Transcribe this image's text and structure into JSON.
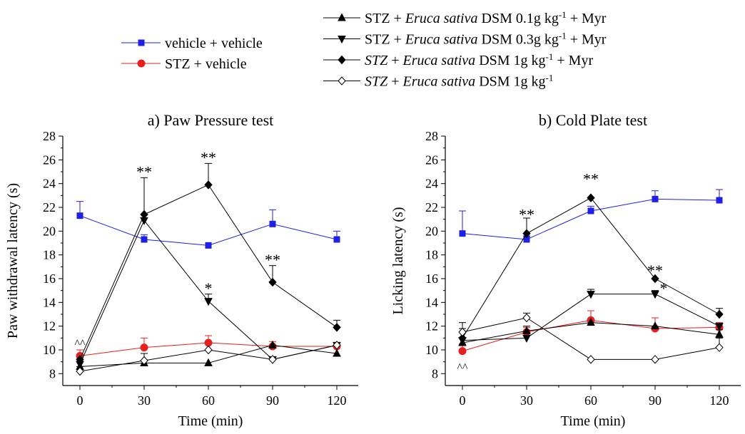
{
  "legend": {
    "left": [
      {
        "label": "vehicle + vehicle",
        "series": "vehicle_vehicle"
      },
      {
        "label": "STZ + vehicle",
        "series": "stz_vehicle"
      }
    ],
    "right": [
      {
        "series": "dsm01_myr",
        "parts": [
          [
            "STZ + ",
            "n"
          ],
          [
            "Eruca sativa",
            "i"
          ],
          [
            " DSM 0.1g kg",
            "n"
          ],
          [
            "-1",
            "sup"
          ],
          [
            " + Myr",
            "n"
          ]
        ]
      },
      {
        "series": "dsm03_myr",
        "parts": [
          [
            "STZ + ",
            "n"
          ],
          [
            "Eruca sativa",
            "i"
          ],
          [
            " DSM 0.3g kg",
            "n"
          ],
          [
            "-1",
            "sup"
          ],
          [
            " + Myr",
            "n"
          ]
        ]
      },
      {
        "series": "dsm1_myr",
        "parts": [
          [
            "STZ",
            "i"
          ],
          [
            " + ",
            "n"
          ],
          [
            "Eruca sativa",
            "i"
          ],
          [
            " DSM 1g kg",
            "n"
          ],
          [
            "-1",
            "sup"
          ],
          [
            " + Myr",
            "n"
          ]
        ]
      },
      {
        "series": "dsm1",
        "parts": [
          [
            "STZ",
            "i"
          ],
          [
            " + ",
            "n"
          ],
          [
            "Eruca sativa",
            "i"
          ],
          [
            " DSM 1g kg",
            "n"
          ],
          [
            "-1",
            "sup"
          ]
        ]
      }
    ]
  },
  "series_style": {
    "vehicle_vehicle": {
      "color": "#1f1fe6",
      "marker": "square",
      "fill": "#1f1fe6"
    },
    "stz_vehicle": {
      "color": "#e61f1f",
      "marker": "circle",
      "fill": "#e61f1f"
    },
    "dsm01_myr": {
      "color": "#000000",
      "marker": "triangle-up",
      "fill": "#000000"
    },
    "dsm03_myr": {
      "color": "#000000",
      "marker": "triangle-down",
      "fill": "#000000"
    },
    "dsm1_myr": {
      "color": "#000000",
      "marker": "diamond",
      "fill": "#000000"
    },
    "dsm1": {
      "color": "#000000",
      "marker": "diamond",
      "fill": "#ffffff"
    }
  },
  "chart_data": [
    {
      "type": "line",
      "title": "a) Paw Pressure test",
      "xlabel": "Time (min)",
      "ylabel": "Paw withdrawal latency (s)",
      "x": [
        0,
        30,
        60,
        90,
        120
      ],
      "xticks": [
        "0",
        "30",
        "60",
        "90",
        "120"
      ],
      "yticks": [
        "8",
        "10",
        "12",
        "14",
        "16",
        "18",
        "20",
        "22",
        "24",
        "26",
        "28"
      ],
      "ylim": [
        7,
        28
      ],
      "series": [
        {
          "name": "vehicle + vehicle",
          "key": "vehicle_vehicle",
          "values": [
            21.3,
            19.3,
            18.8,
            20.6,
            19.3
          ],
          "err": [
            1.2,
            0.4,
            0.0,
            1.2,
            0.7
          ]
        },
        {
          "name": "STZ + vehicle",
          "key": "stz_vehicle",
          "values": [
            9.5,
            10.2,
            10.6,
            10.3,
            10.3
          ],
          "err": [
            0.5,
            0.8,
            0.6,
            0.4,
            0.0
          ]
        },
        {
          "name": "STZ + Eruca sativa DSM 0.1g kg-1 + Myr",
          "key": "dsm01_myr",
          "values": [
            8.6,
            8.9,
            8.9,
            10.4,
            9.7
          ],
          "err": [
            0,
            0,
            0,
            0,
            0
          ]
        },
        {
          "name": "STZ + Eruca sativa DSM 0.3g kg-1 + Myr",
          "key": "dsm03_myr",
          "values": [
            8.8,
            20.9,
            14.1,
            9.2,
            10.4
          ],
          "err": [
            0,
            0,
            0.6,
            0,
            0
          ]
        },
        {
          "name": "STZ + Eruca sativa DSM 1g kg-1 + Myr",
          "key": "dsm1_myr",
          "values": [
            9.2,
            21.4,
            23.9,
            15.7,
            11.9
          ],
          "err": [
            0,
            3.1,
            1.8,
            1.4,
            0.6
          ]
        },
        {
          "name": "STZ + Eruca sativa DSM 1g kg-1",
          "key": "dsm1",
          "values": [
            8.2,
            9.1,
            10.0,
            9.2,
            10.4
          ],
          "err": [
            0.4,
            0.6,
            0,
            0,
            0
          ]
        }
      ],
      "annotations": [
        {
          "x": 0,
          "y": 10.6,
          "text": "^^"
        },
        {
          "x": 30,
          "y": 24.9,
          "text": "**"
        },
        {
          "x": 60,
          "y": 26.1,
          "text": "**"
        },
        {
          "x": 60,
          "y": 15.1,
          "text": "*"
        },
        {
          "x": 90,
          "y": 17.5,
          "text": "**"
        }
      ]
    },
    {
      "type": "line",
      "title": "b) Cold Plate test",
      "xlabel": "Time (min)",
      "ylabel": "Licking latency (s)",
      "x": [
        0,
        30,
        60,
        90,
        120
      ],
      "xticks": [
        "0",
        "30",
        "60",
        "90",
        "120"
      ],
      "yticks": [
        "8",
        "10",
        "12",
        "14",
        "16",
        "18",
        "20",
        "22",
        "24",
        "26",
        "28"
      ],
      "ylim": [
        7,
        28
      ],
      "series": [
        {
          "name": "vehicle + vehicle",
          "key": "vehicle_vehicle",
          "values": [
            19.8,
            19.3,
            21.7,
            22.7,
            22.6
          ],
          "err": [
            1.9,
            0.3,
            0.4,
            0.7,
            0.9
          ]
        },
        {
          "name": "STZ + vehicle",
          "key": "stz_vehicle",
          "values": [
            9.9,
            11.5,
            12.5,
            11.8,
            11.9
          ],
          "err": [
            0.6,
            0.4,
            0.8,
            0.9,
            0.4
          ]
        },
        {
          "name": "STZ + Eruca sativa DSM 0.1g kg-1 + Myr",
          "key": "dsm01_myr",
          "values": [
            10.6,
            11.6,
            12.3,
            12.0,
            11.3
          ],
          "err": [
            0,
            0.4,
            0,
            0,
            0.4
          ]
        },
        {
          "name": "STZ + Eruca sativa DSM 0.3g kg-1 + Myr",
          "key": "dsm03_myr",
          "values": [
            10.8,
            11.0,
            14.7,
            14.7,
            12.0
          ],
          "err": [
            0,
            0,
            0.4,
            0.3,
            0
          ]
        },
        {
          "name": "STZ + Eruca sativa DSM 1g kg-1 + Myr",
          "key": "dsm1_myr",
          "values": [
            11.0,
            19.8,
            22.8,
            16.0,
            13.0
          ],
          "err": [
            0.8,
            1.3,
            0,
            0,
            0.5
          ]
        },
        {
          "name": "STZ + Eruca sativa DSM 1g kg-1",
          "key": "dsm1",
          "values": [
            11.5,
            12.7,
            9.2,
            9.2,
            10.2
          ],
          "err": [
            0.8,
            0.4,
            0,
            0,
            0.8
          ]
        }
      ],
      "annotations": [
        {
          "x": 0,
          "y": 8.6,
          "text": "^^"
        },
        {
          "x": 30,
          "y": 21.3,
          "text": "**"
        },
        {
          "x": 60,
          "y": 24.3,
          "text": "**"
        },
        {
          "x": 90,
          "y": 16.6,
          "text": "**"
        },
        {
          "x": 94,
          "y": 15.1,
          "text": "*"
        }
      ]
    }
  ]
}
